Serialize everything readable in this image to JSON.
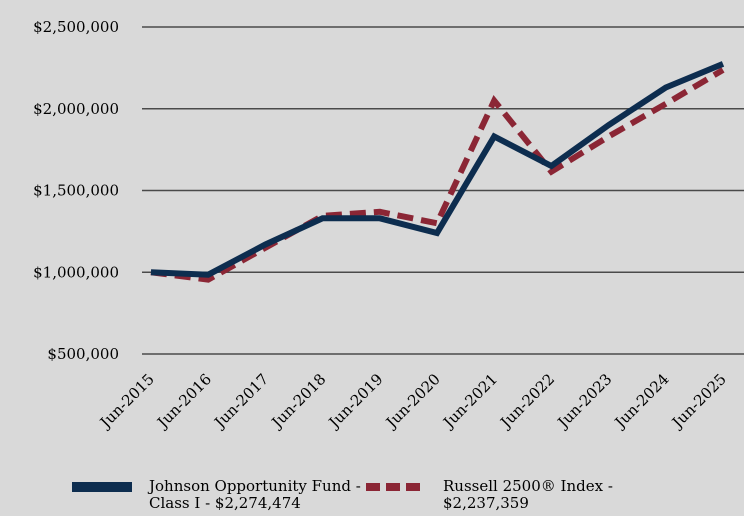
{
  "chart_data": {
    "type": "line",
    "x": [
      "Jun-2015",
      "Jun-2016",
      "Jun-2017",
      "Jun-2018",
      "Jun-2019",
      "Jun-2020",
      "Jun-2021",
      "Jun-2022",
      "Jun-2023",
      "Jun-2024",
      "Jun-2025"
    ],
    "y_ticks": [
      {
        "value": 500000,
        "label": "$500,000"
      },
      {
        "value": 1000000,
        "label": "$1,000,000"
      },
      {
        "value": 1500000,
        "label": "$1,500,000"
      },
      {
        "value": 2000000,
        "label": "$2,000,000"
      },
      {
        "value": 2500000,
        "label": "$2,500,000"
      }
    ],
    "ylim": [
      500000,
      2500000
    ],
    "grid": true,
    "legend_position": "bottom",
    "series": [
      {
        "name_line1": "Johnson Opportunity Fund -",
        "name_line2": "Class I - $2,274,474",
        "color": "#0d2d4f",
        "style": "solid",
        "values": [
          1000000,
          985000,
          1170000,
          1330000,
          1330000,
          1240000,
          1830000,
          1650000,
          1900000,
          2130000,
          2274474
        ]
      },
      {
        "name_line1": "Russell 2500® Index -",
        "name_line2": "$2,237,359",
        "color": "#8b2635",
        "style": "dashed",
        "values": [
          1000000,
          955000,
          1150000,
          1345000,
          1370000,
          1300000,
          2050000,
          1615000,
          1830000,
          2030000,
          2237359
        ]
      }
    ]
  }
}
